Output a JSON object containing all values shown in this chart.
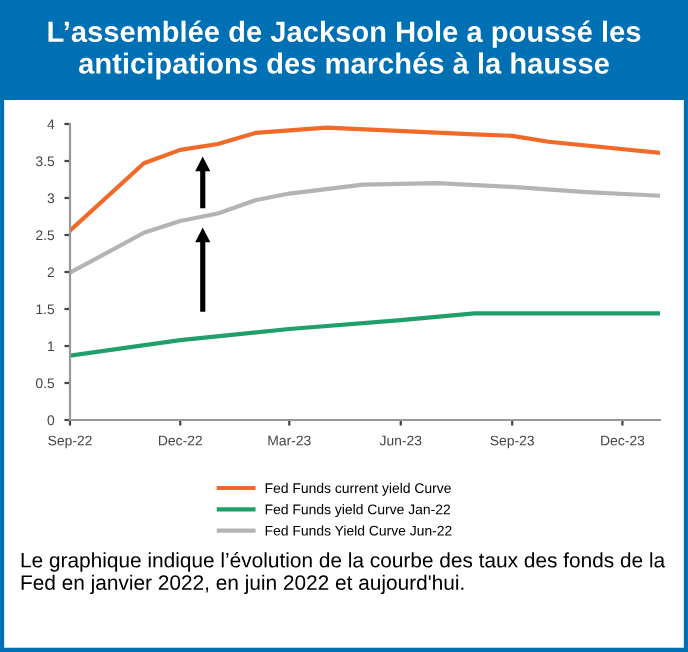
{
  "chart_data": {
    "type": "line",
    "title": "L’assemblée de Jackson Hole a poussé les anticipations des marchés à la hausse",
    "annotations": [
      "Le graphique indique l’évolution de la courbe des taux des fonds de la Fed en janvier 2022, en juin 2022 et aujourd'hui."
    ],
    "series": [
      {
        "name": "Fed Funds current yield Curve",
        "color": "#f26a2a",
        "x": [
          "2022-09",
          "2022-11",
          "2022-12",
          "2023-01",
          "2023-02",
          "2023-04",
          "2023-08",
          "2023-09",
          "2023-10",
          "2024-01"
        ],
        "values": [
          2.56,
          3.47,
          3.65,
          3.73,
          3.88,
          3.95,
          3.86,
          3.84,
          3.76,
          3.61
        ]
      },
      {
        "name": "Fed Funds yield Curve Jan-22",
        "color": "#1fa06a",
        "x": [
          "2022-09",
          "2022-12",
          "2023-03",
          "2023-06",
          "2023-08",
          "2024-01"
        ],
        "values": [
          0.87,
          1.08,
          1.23,
          1.35,
          1.44,
          1.44
        ]
      },
      {
        "name": "Fed Funds Yield Curve Jun-22",
        "color": "#b4b4b4",
        "x": [
          "2022-09",
          "2022-11",
          "2022-12",
          "2023-01",
          "2023-02",
          "2023-03",
          "2023-05",
          "2023-07",
          "2023-09",
          "2023-11",
          "2024-01"
        ],
        "values": [
          1.99,
          2.53,
          2.69,
          2.79,
          2.97,
          3.06,
          3.18,
          3.2,
          3.15,
          3.08,
          3.03
        ]
      }
    ],
    "xlim": [
      "2022-09",
      "2024-01"
    ],
    "xticks": [
      {
        "value": "2022-09",
        "label": "Sep-22"
      },
      {
        "value": "2022-12",
        "label": "Dec-22"
      },
      {
        "value": "2023-03",
        "label": "Mar-23"
      },
      {
        "value": "2023-06",
        "label": "Jun-23"
      },
      {
        "value": "2023-09",
        "label": "Sep-23"
      },
      {
        "value": "2023-12",
        "label": "Dec-23"
      }
    ],
    "ylim": [
      0,
      4
    ],
    "yticks": [
      0,
      0.5,
      1,
      1.5,
      2,
      2.5,
      3,
      3.5,
      4
    ],
    "grid": false,
    "legend": "bottom",
    "marker": "none",
    "line_style": "solid"
  }
}
